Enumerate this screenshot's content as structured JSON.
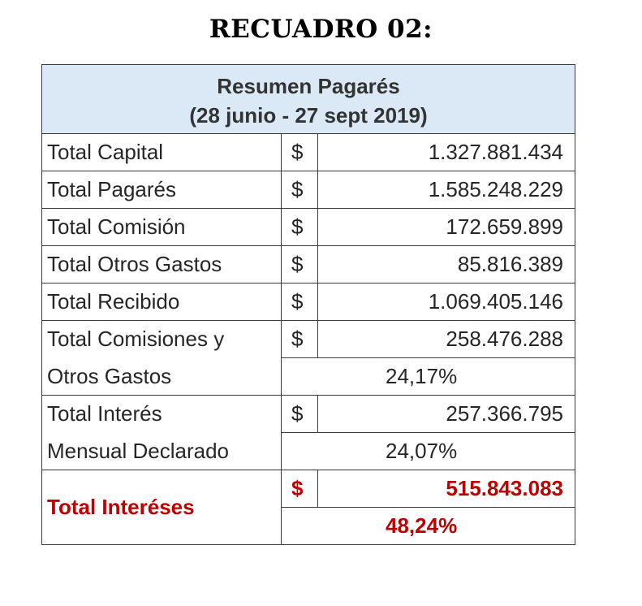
{
  "title": "RECUADRO 02:",
  "table": {
    "header_line1": "Resumen Pagarés",
    "header_line2": "(28 junio - 27 sept 2019)",
    "currency": "$",
    "rows": [
      {
        "label": "Total Capital",
        "amount": "1.327.881.434"
      },
      {
        "label": "Total Pagarés",
        "amount": "1.585.248.229"
      },
      {
        "label": "Total Comisión",
        "amount": "172.659.899"
      },
      {
        "label": "Total Otros Gastos",
        "amount": "85.816.389"
      },
      {
        "label": "Total Recibido",
        "amount": "1.069.405.146"
      }
    ],
    "comisiones": {
      "label_line1": "Total Comisiones y",
      "label_line2": "Otros Gastos",
      "amount": "258.476.288",
      "percent": "24,17%"
    },
    "interes_mensual": {
      "label_line1": "Total Interés",
      "label_line2": "Mensual Declarado",
      "amount": "257.366.795",
      "percent": "24,07%"
    },
    "intereses_total": {
      "label": "Total Interéses",
      "amount": "515.843.083",
      "percent": "48,24%",
      "color": "#c00000"
    }
  }
}
